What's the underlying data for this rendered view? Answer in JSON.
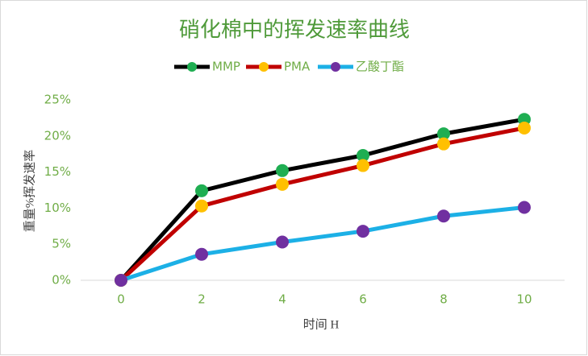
{
  "chart_data": {
    "type": "line",
    "title": "硝化棉中的挥发速率曲线",
    "x_label": "时间 H",
    "y_label": "重量%挥发速率",
    "x": [
      0,
      2,
      4,
      6,
      8,
      10
    ],
    "xlim": [
      -1,
      11
    ],
    "xticks": [
      0,
      2,
      4,
      6,
      8,
      10
    ],
    "ylim": [
      0,
      25
    ],
    "yticks": [
      {
        "value": 0,
        "label": "0%"
      },
      {
        "value": 5,
        "label": "5%"
      },
      {
        "value": 10,
        "label": "10%"
      },
      {
        "value": 15,
        "label": "15%"
      },
      {
        "value": 20,
        "label": "20%"
      },
      {
        "value": 25,
        "label": "25%"
      }
    ],
    "legend": "top",
    "series": [
      {
        "name": "MMP",
        "color": "#000000",
        "marker_color": "#1fae52",
        "values": [
          0,
          12.4,
          15.2,
          17.3,
          20.3,
          22.3
        ]
      },
      {
        "name": "PMA",
        "color": "#c00000",
        "marker_color": "#ffc000",
        "values": [
          0,
          10.3,
          13.3,
          15.9,
          18.9,
          21.1
        ]
      },
      {
        "name": "乙酸丁酯",
        "color": "#1cb0e6",
        "marker_color": "#7030a0",
        "values": [
          0,
          3.6,
          5.3,
          6.8,
          8.9,
          10.1
        ]
      }
    ]
  }
}
